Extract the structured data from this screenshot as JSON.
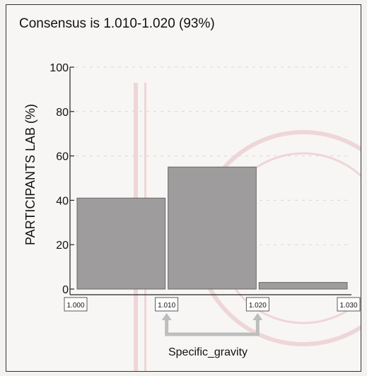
{
  "chart_data": {
    "type": "bar",
    "title": "Consensus is 1.010-1.020 (93%)",
    "xlabel": "Specific_gravity",
    "ylabel": "PARTICIPANTS LAB (%)",
    "ylim": [
      0,
      100
    ],
    "yticks": [
      0,
      20,
      40,
      60,
      80,
      100
    ],
    "xticks": [
      "1.000",
      "1.010",
      "1.020",
      "1.030"
    ],
    "x_range": [
      1.0,
      1.03
    ],
    "bins": [
      {
        "from": 1.0,
        "to": 1.01,
        "value": 41
      },
      {
        "from": 1.01,
        "to": 1.02,
        "value": 55
      },
      {
        "from": 1.02,
        "to": 1.03,
        "value": 3
      }
    ],
    "consensus_range": [
      1.01,
      1.02
    ],
    "grid": true,
    "colors": {
      "bar_fill": "#9e9c9c",
      "bar_stroke": "#6a6868",
      "axis": "#222222",
      "bracket": "#bdbdbd"
    }
  }
}
